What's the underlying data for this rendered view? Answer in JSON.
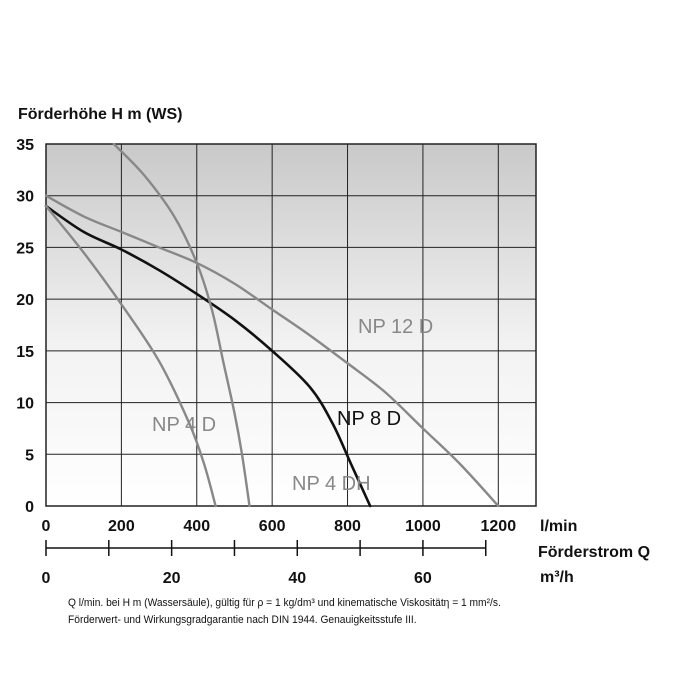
{
  "chart_data": {
    "type": "line",
    "y_title": "Förderhöhe H m (WS)",
    "y_ticks": [
      "35",
      "30",
      "25",
      "20",
      "15",
      "10",
      "5",
      "0"
    ],
    "ylim": [
      0,
      35
    ],
    "x_ticks_lmin": [
      "0",
      "200",
      "400",
      "600",
      "800",
      "1000",
      "1200"
    ],
    "x_unit_lmin": "l/min",
    "xlim_lmin": [
      0,
      1300
    ],
    "x_title": "Förderstrom Q",
    "x_ticks_m3h": [
      "0",
      "20",
      "40",
      "60"
    ],
    "x_unit_m3h": "m³/h",
    "grid": true,
    "series": [
      {
        "name": "NP 12 D",
        "color": "#888888",
        "points": [
          [
            0,
            30
          ],
          [
            100,
            28
          ],
          [
            200,
            26.5
          ],
          [
            300,
            25
          ],
          [
            400,
            23.5
          ],
          [
            500,
            21.5
          ],
          [
            600,
            19
          ],
          [
            700,
            16.5
          ],
          [
            800,
            13.8
          ],
          [
            900,
            11
          ],
          [
            1000,
            7.5
          ],
          [
            1100,
            4
          ],
          [
            1200,
            0
          ]
        ]
      },
      {
        "name": "NP 8 D",
        "color": "#111111",
        "points": [
          [
            0,
            29
          ],
          [
            100,
            26.5
          ],
          [
            200,
            24.8
          ],
          [
            300,
            22.8
          ],
          [
            400,
            20.5
          ],
          [
            500,
            18
          ],
          [
            600,
            15
          ],
          [
            700,
            11.5
          ],
          [
            760,
            8
          ],
          [
            810,
            4
          ],
          [
            860,
            0
          ]
        ]
      },
      {
        "name": "NP 4 D",
        "color": "#888888",
        "points": [
          [
            0,
            29
          ],
          [
            100,
            24.5
          ],
          [
            200,
            19.5
          ],
          [
            300,
            14
          ],
          [
            380,
            8
          ],
          [
            420,
            4
          ],
          [
            450,
            0
          ]
        ]
      },
      {
        "name": "NP 4 DH",
        "color": "#888888",
        "points": [
          [
            180,
            35
          ],
          [
            260,
            32
          ],
          [
            340,
            28
          ],
          [
            400,
            23.5
          ],
          [
            440,
            19
          ],
          [
            470,
            14
          ],
          [
            500,
            9
          ],
          [
            520,
            5
          ],
          [
            540,
            0
          ]
        ]
      }
    ]
  },
  "footnote": {
    "line1": "Q l/min. bei H m (Wassersäule), gültig für ρ = 1 kg/dm³ und kinematische Viskositätη = 1 mm²/s.",
    "line2": "Förderwert- und Wirkungsgradgarantie nach DIN 1944. Genauigkeitsstufe III."
  }
}
